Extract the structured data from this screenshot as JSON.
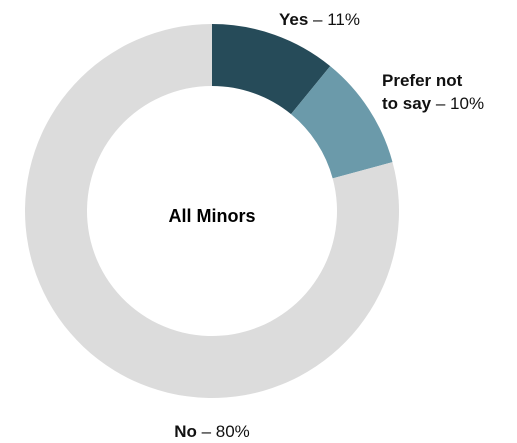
{
  "chart_data": {
    "type": "pie",
    "center_label": "All Minors",
    "slices": [
      {
        "label": "Yes",
        "value": 11,
        "value_text": "11%",
        "color": "#264b59"
      },
      {
        "label": "Prefer not to say",
        "value": 10,
        "value_text": "10%",
        "color": "#6b9aaa"
      },
      {
        "label": "No",
        "value": 80,
        "value_text": "80%",
        "color": "#dcdcdc"
      }
    ]
  }
}
